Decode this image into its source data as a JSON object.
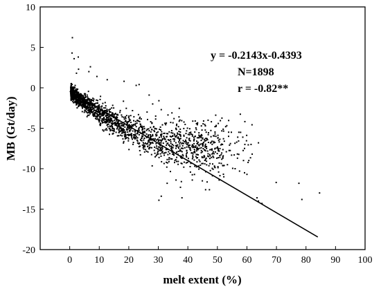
{
  "chart_data": {
    "type": "scatter",
    "xlabel": "melt extent (%)",
    "ylabel": "MB (Gt/day)",
    "xlim": [
      -10,
      100
    ],
    "ylim": [
      -20,
      10
    ],
    "xticks": [
      0,
      10,
      20,
      30,
      40,
      50,
      60,
      70,
      80,
      90,
      100
    ],
    "yticks": [
      10,
      5,
      0,
      -5,
      -10,
      -15,
      -20
    ],
    "grid": false,
    "point_count": 1898,
    "regression": {
      "slope": -0.2143,
      "intercept": -0.4393,
      "x_range": [
        0,
        84
      ]
    },
    "annotations": [
      "y = -0.2143x-0.4393",
      "N=1898",
      "r = -0.82**"
    ],
    "sample_points": [
      [
        0.9,
        6.2
      ],
      [
        0.8,
        4.3
      ],
      [
        1.5,
        3.6
      ],
      [
        2.9,
        3.8
      ],
      [
        3.0,
        2.3
      ],
      [
        2.3,
        1.8
      ],
      [
        7.0,
        2.6
      ],
      [
        6.5,
        2.0
      ],
      [
        9.2,
        1.4
      ],
      [
        12.7,
        1.0
      ],
      [
        18.4,
        0.8
      ],
      [
        22.5,
        0.3
      ],
      [
        23.5,
        0.4
      ],
      [
        26.9,
        -0.9
      ],
      [
        30.2,
        -1.6
      ],
      [
        28.1,
        -2.0
      ],
      [
        31.0,
        -2.7
      ],
      [
        29.1,
        -3.5
      ],
      [
        26.2,
        -3.0
      ],
      [
        34.6,
        -3.1
      ],
      [
        37.0,
        -3.6
      ],
      [
        36.0,
        -5.0
      ],
      [
        42.5,
        -4.1
      ],
      [
        41.0,
        -5.5
      ],
      [
        40.6,
        -5.8
      ],
      [
        43.0,
        -6.6
      ],
      [
        45.0,
        -6.2
      ],
      [
        46.5,
        -6.3
      ],
      [
        49.2,
        -4.8
      ],
      [
        52.8,
        -4.8
      ],
      [
        49.5,
        -6.0
      ],
      [
        53.8,
        -6.0
      ],
      [
        54.4,
        -6.9
      ],
      [
        55.7,
        -8.3
      ],
      [
        56.8,
        -8.7
      ],
      [
        59.3,
        -7.0
      ],
      [
        61.4,
        -7.0
      ],
      [
        63.9,
        -6.8
      ],
      [
        60.0,
        -10.7
      ],
      [
        56.0,
        -10.0
      ],
      [
        53.4,
        -9.5
      ],
      [
        51.8,
        -9.6
      ],
      [
        49.8,
        -8.7
      ],
      [
        50.6,
        -11.4
      ],
      [
        47.3,
        -12.6
      ],
      [
        44.9,
        -11.5
      ],
      [
        41.5,
        -11.4
      ],
      [
        37.8,
        -11.6
      ],
      [
        37.5,
        -12.3
      ],
      [
        38.0,
        -13.6
      ],
      [
        33.0,
        -11.8
      ],
      [
        31.0,
        -13.4
      ],
      [
        30.2,
        -13.9
      ],
      [
        36.0,
        -11.4
      ],
      [
        46.0,
        -12.6
      ],
      [
        57.5,
        -10.3
      ],
      [
        59.2,
        -10.5
      ],
      [
        63.4,
        -13.6
      ],
      [
        63.9,
        -14.0
      ],
      [
        65.1,
        -14.3
      ],
      [
        69.9,
        -11.7
      ],
      [
        77.6,
        -11.8
      ],
      [
        78.6,
        -13.8
      ],
      [
        84.6,
        -13.0
      ]
    ],
    "source_note": "sample_points lists the clearly separated outliers; the dense cloud is drawn by the script"
  }
}
